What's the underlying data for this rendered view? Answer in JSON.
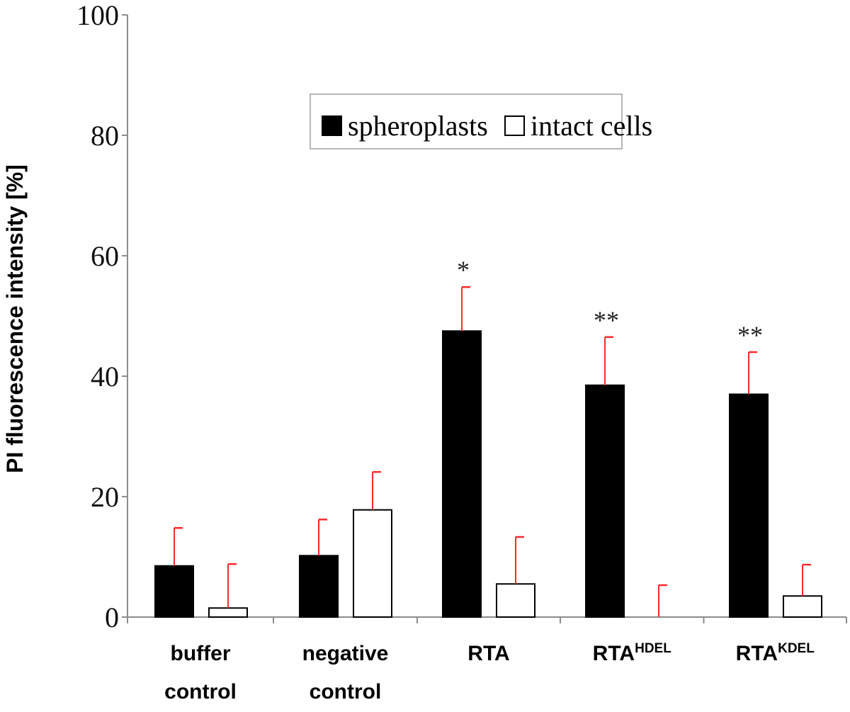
{
  "chart_data": {
    "type": "bar",
    "title": "",
    "xlabel": "",
    "ylabel": "PI fluorescence intensity [%]",
    "ylim": [
      0,
      100
    ],
    "yticks": [
      "0",
      "20",
      "40",
      "60",
      "80",
      "100"
    ],
    "grid": false,
    "legend_position": "upper-right",
    "categories": [
      {
        "line1": "buffer",
        "line2": "control",
        "sup": ""
      },
      {
        "line1": "negative",
        "line2": "control",
        "sup": ""
      },
      {
        "line1": "RTA",
        "line2": "",
        "sup": ""
      },
      {
        "line1": "RTA",
        "line2": "",
        "sup": "HDEL"
      },
      {
        "line1": "RTA",
        "line2": "",
        "sup": "KDEL"
      }
    ],
    "series": [
      {
        "name": "spheroplasts",
        "fill": "#000000",
        "values": [
          8.5,
          10.2,
          47.5,
          38.5,
          37.0
        ],
        "errors": [
          6.3,
          6.0,
          7.3,
          8.0,
          7.0
        ]
      },
      {
        "name": "intact cells",
        "fill": "#ffffff",
        "values": [
          1.5,
          17.8,
          5.5,
          0,
          3.5
        ],
        "errors": [
          7.3,
          6.3,
          7.8,
          5.3,
          5.2
        ]
      }
    ],
    "significance": [
      {
        "category": 2,
        "text": "*"
      },
      {
        "category": 3,
        "text": "**"
      },
      {
        "category": 4,
        "text": "**"
      }
    ],
    "colors": {
      "error_bar": "#ff2a2a",
      "axis": "#8c8c8c",
      "bar_edge": "#000000"
    }
  }
}
